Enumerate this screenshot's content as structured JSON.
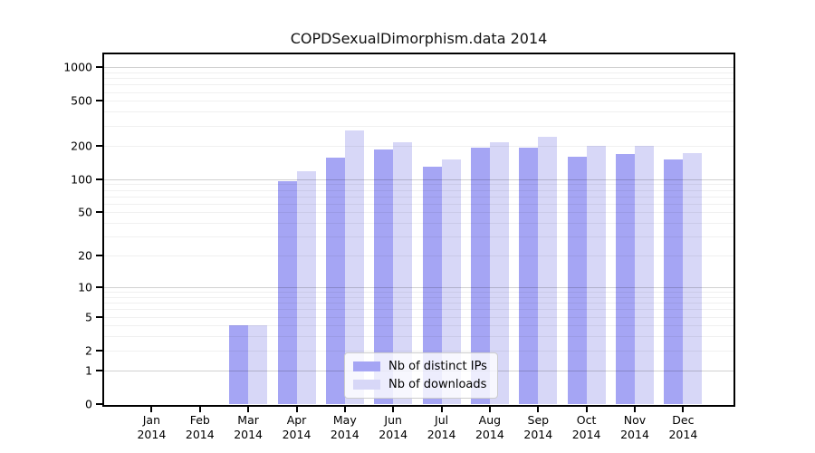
{
  "title": "COPDSexualDimorphism.data 2014",
  "legend": {
    "items": [
      {
        "label": "Nb of distinct IPs",
        "swatch_color": "#a5a5f4"
      },
      {
        "label": "Nb of downloads",
        "swatch_color": "#d7d7f7"
      }
    ]
  },
  "chart_data": {
    "type": "bar",
    "title": "COPDSexualDimorphism.data 2014",
    "categories": [
      "Jan 2014",
      "Feb 2014",
      "Mar 2014",
      "Apr 2014",
      "May 2014",
      "Jun 2014",
      "Jul 2014",
      "Aug 2014",
      "Sep 2014",
      "Oct 2014",
      "Nov 2014",
      "Dec 2014"
    ],
    "series": [
      {
        "name": "Nb of distinct IPs",
        "color": "#a5a5f4",
        "values": [
          0,
          0,
          4,
          95,
          155,
          185,
          130,
          190,
          190,
          160,
          168,
          150
        ]
      },
      {
        "name": "Nb of downloads",
        "color": "#d7d7f7",
        "values": [
          0,
          0,
          4,
          118,
          270,
          215,
          150,
          215,
          240,
          200,
          198,
          170
        ]
      }
    ],
    "yscale": "log1p",
    "ylim": [
      0,
      1300
    ],
    "yticks": [
      0,
      1,
      2,
      5,
      10,
      20,
      50,
      100,
      200,
      500,
      1000
    ],
    "grid": true,
    "gridlines_major": [
      1,
      10,
      100,
      1000
    ],
    "legend_position": "lower-center-inside",
    "xlabel": "",
    "ylabel": ""
  }
}
